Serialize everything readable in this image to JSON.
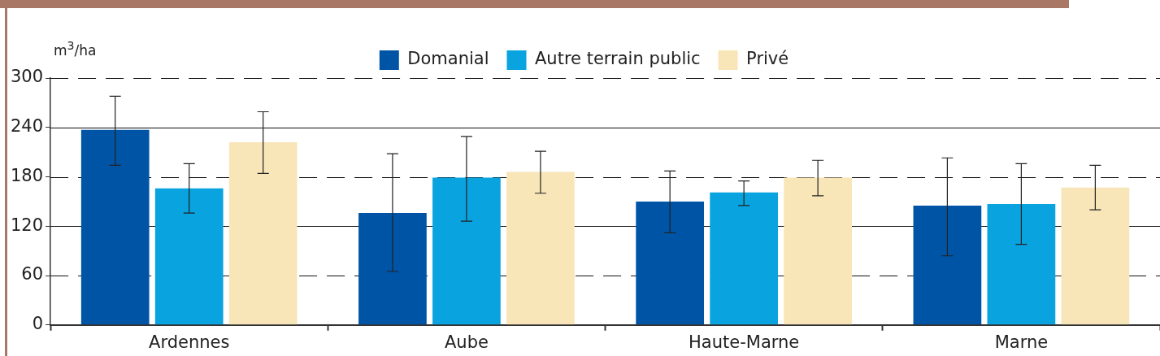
{
  "chart_data": {
    "type": "bar",
    "ylabel": "m$^{3}$/ha",
    "categories": [
      "Ardennes",
      "Aube",
      "Haute-Marne",
      "Marne"
    ],
    "series": [
      {
        "name": "Domanial",
        "color": "#0054a6",
        "values": [
          237,
          136,
          150,
          145
        ],
        "errors": [
          [
            194,
            278
          ],
          [
            65,
            208
          ],
          [
            112,
            187
          ],
          [
            84,
            203
          ]
        ]
      },
      {
        "name": "Autre terrain public",
        "color": "#09a3df",
        "values": [
          166,
          179,
          161,
          147
        ],
        "errors": [
          [
            136,
            196
          ],
          [
            126,
            229
          ],
          [
            145,
            175
          ],
          [
            98,
            196
          ]
        ]
      },
      {
        "name": "Privé",
        "color": "#f8e6b8",
        "values": [
          222,
          186,
          179,
          167
        ],
        "errors": [
          [
            184,
            259
          ],
          [
            160,
            211
          ],
          [
            157,
            200
          ],
          [
            140,
            194
          ]
        ]
      }
    ],
    "ylim": [
      0,
      300
    ],
    "yticks": [
      0,
      60,
      120,
      180,
      240,
      300
    ],
    "grid": "y",
    "legend": "top"
  }
}
